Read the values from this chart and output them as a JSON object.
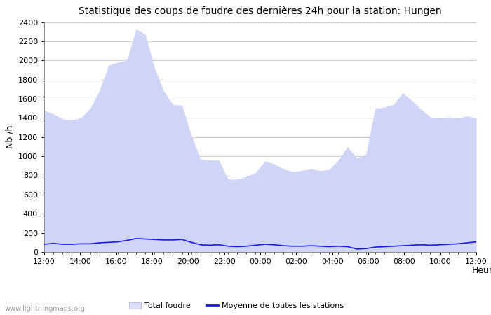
{
  "title": "Statistique des coups de foudre des dernières 24h pour la station: Hungen",
  "xlabel": "Heure",
  "ylabel": "Nb /h",
  "watermark": "www.lightningmaps.org",
  "ylim": [
    0,
    2400
  ],
  "yticks": [
    0,
    200,
    400,
    600,
    800,
    1000,
    1200,
    1400,
    1600,
    1800,
    2000,
    2200,
    2400
  ],
  "xtick_labels": [
    "12:00",
    "14:00",
    "16:00",
    "18:00",
    "20:00",
    "22:00",
    "00:00",
    "02:00",
    "04:00",
    "06:00",
    "08:00",
    "10:00",
    "12:00"
  ],
  "bg_color": "#ffffff",
  "grid_color": "#cccccc",
  "fill_color": "#d0d4f7",
  "mean_line_color": "#1a1aee",
  "legend_total_color": "#ddddf5",
  "legend_hungen_color": "#9999dd",
  "total_foudre": [
    1480,
    1440,
    1390,
    1380,
    1400,
    1500,
    1680,
    1950,
    1980,
    2000,
    2330,
    2270,
    1920,
    1680,
    1540,
    1530,
    1220,
    970,
    960,
    960,
    760,
    760,
    790,
    830,
    950,
    920,
    870,
    840,
    850,
    870,
    850,
    860,
    960,
    1100,
    980,
    1020,
    1500,
    1510,
    1540,
    1660,
    1580,
    1490,
    1410,
    1400,
    1410,
    1400,
    1420,
    1400
  ],
  "mean_line": [
    80,
    90,
    80,
    80,
    85,
    85,
    95,
    100,
    105,
    120,
    140,
    135,
    130,
    125,
    125,
    130,
    100,
    75,
    70,
    75,
    60,
    55,
    60,
    70,
    80,
    75,
    65,
    60,
    60,
    65,
    60,
    55,
    60,
    55,
    30,
    35,
    50,
    55,
    60,
    65,
    70,
    75,
    70,
    75,
    80,
    85,
    95,
    105
  ]
}
